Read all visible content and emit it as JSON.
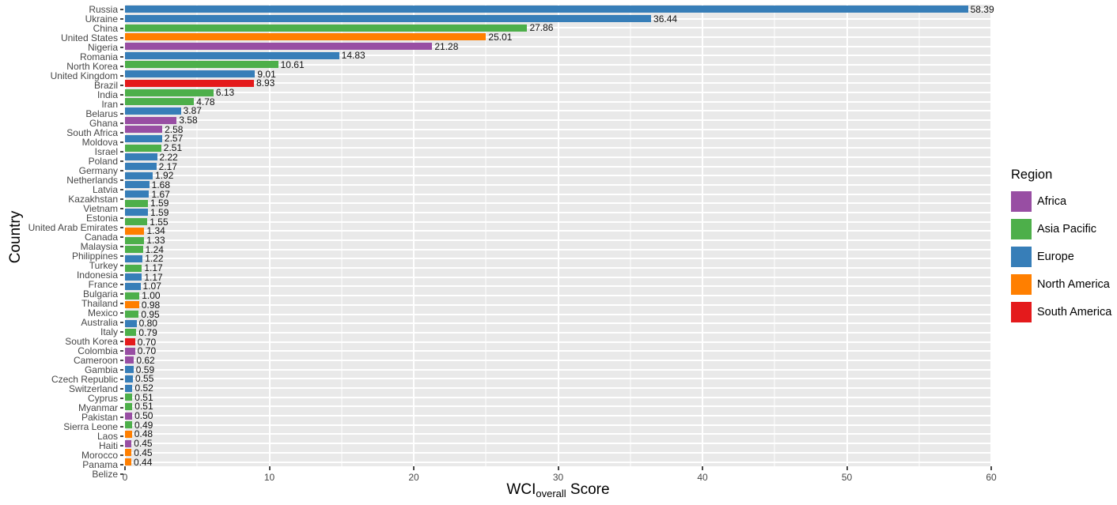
{
  "chart_data": {
    "type": "bar",
    "orientation": "horizontal",
    "xlabel": "WCI_overall Score",
    "xlabel_parts": {
      "main": "WCI",
      "sub": "overall",
      "rest": " Score"
    },
    "ylabel": "Country",
    "xlim": [
      0,
      60
    ],
    "x_ticks": [
      0,
      10,
      20,
      30,
      40,
      50,
      60
    ],
    "x_minor_gridlines": [
      5,
      15,
      25,
      35,
      45,
      55
    ],
    "grid": "on",
    "panel_background": "#E9E9E9",
    "gridline_color": "#FFFFFF",
    "legend": {
      "title": "Region",
      "position": "right",
      "entries": [
        {
          "label": "Africa",
          "color": "#984EA3"
        },
        {
          "label": "Asia Pacific",
          "color": "#4DAF4A"
        },
        {
          "label": "Europe",
          "color": "#377EB8"
        },
        {
          "label": "North America",
          "color": "#FF7F00"
        },
        {
          "label": "South America",
          "color": "#E41A1C"
        }
      ]
    },
    "region_colors": {
      "Africa": "#984EA3",
      "Asia Pacific": "#4DAF4A",
      "Europe": "#377EB8",
      "North America": "#FF7F00",
      "South America": "#E41A1C"
    },
    "countries": [
      {
        "name": "Russia",
        "value": 58.39,
        "label": "58.39",
        "region": "Europe"
      },
      {
        "name": "Ukraine",
        "value": 36.44,
        "label": "36.44",
        "region": "Europe"
      },
      {
        "name": "China",
        "value": 27.86,
        "label": "27.86",
        "region": "Asia Pacific"
      },
      {
        "name": "United States",
        "value": 25.01,
        "label": "25.01",
        "region": "North America"
      },
      {
        "name": "Nigeria",
        "value": 21.28,
        "label": "21.28",
        "region": "Africa"
      },
      {
        "name": "Romania",
        "value": 14.83,
        "label": "14.83",
        "region": "Europe"
      },
      {
        "name": "North Korea",
        "value": 10.61,
        "label": "10.61",
        "region": "Asia Pacific"
      },
      {
        "name": "United Kingdom",
        "value": 9.01,
        "label": "9.01",
        "region": "Europe"
      },
      {
        "name": "Brazil",
        "value": 8.93,
        "label": "8.93",
        "region": "South America"
      },
      {
        "name": "India",
        "value": 6.13,
        "label": "6.13",
        "region": "Asia Pacific"
      },
      {
        "name": "Iran",
        "value": 4.78,
        "label": "4.78",
        "region": "Asia Pacific"
      },
      {
        "name": "Belarus",
        "value": 3.87,
        "label": "3.87",
        "region": "Europe"
      },
      {
        "name": "Ghana",
        "value": 3.58,
        "label": "3.58",
        "region": "Africa"
      },
      {
        "name": "South Africa",
        "value": 2.58,
        "label": "2.58",
        "region": "Africa"
      },
      {
        "name": "Moldova",
        "value": 2.57,
        "label": "2.57",
        "region": "Europe"
      },
      {
        "name": "Israel",
        "value": 2.51,
        "label": "2.51",
        "region": "Asia Pacific"
      },
      {
        "name": "Poland",
        "value": 2.22,
        "label": "2.22",
        "region": "Europe"
      },
      {
        "name": "Germany",
        "value": 2.17,
        "label": "2.17",
        "region": "Europe"
      },
      {
        "name": "Netherlands",
        "value": 1.92,
        "label": "1.92",
        "region": "Europe"
      },
      {
        "name": "Latvia",
        "value": 1.68,
        "label": "1.68",
        "region": "Europe"
      },
      {
        "name": "Kazakhstan",
        "value": 1.67,
        "label": "1.67",
        "region": "Europe"
      },
      {
        "name": "Vietnam",
        "value": 1.59,
        "label": "1.59",
        "region": "Asia Pacific"
      },
      {
        "name": "Estonia",
        "value": 1.59,
        "label": "1.59",
        "region": "Europe"
      },
      {
        "name": "United Arab Emirates",
        "value": 1.55,
        "label": "1.55",
        "region": "Asia Pacific"
      },
      {
        "name": "Canada",
        "value": 1.34,
        "label": "1.34",
        "region": "North America"
      },
      {
        "name": "Malaysia",
        "value": 1.33,
        "label": "1.33",
        "region": "Asia Pacific"
      },
      {
        "name": "Philippines",
        "value": 1.24,
        "label": "1.24",
        "region": "Asia Pacific"
      },
      {
        "name": "Turkey",
        "value": 1.22,
        "label": "1.22",
        "region": "Europe"
      },
      {
        "name": "Indonesia",
        "value": 1.17,
        "label": "1.17",
        "region": "Asia Pacific"
      },
      {
        "name": "France",
        "value": 1.17,
        "label": "1.17",
        "region": "Europe"
      },
      {
        "name": "Bulgaria",
        "value": 1.07,
        "label": "1.07",
        "region": "Europe"
      },
      {
        "name": "Thailand",
        "value": 1.0,
        "label": "1.00",
        "region": "Asia Pacific"
      },
      {
        "name": "Mexico",
        "value": 0.98,
        "label": "0.98",
        "region": "North America"
      },
      {
        "name": "Australia",
        "value": 0.95,
        "label": "0.95",
        "region": "Asia Pacific"
      },
      {
        "name": "Italy",
        "value": 0.8,
        "label": "0.80",
        "region": "Europe"
      },
      {
        "name": "South Korea",
        "value": 0.79,
        "label": "0.79",
        "region": "Asia Pacific"
      },
      {
        "name": "Colombia",
        "value": 0.7,
        "label": "0.70",
        "region": "South America"
      },
      {
        "name": "Cameroon",
        "value": 0.7,
        "label": "0.70",
        "region": "Africa"
      },
      {
        "name": "Gambia",
        "value": 0.62,
        "label": "0.62",
        "region": "Africa"
      },
      {
        "name": "Czech Republic",
        "value": 0.59,
        "label": "0.59",
        "region": "Europe"
      },
      {
        "name": "Switzerland",
        "value": 0.55,
        "label": "0.55",
        "region": "Europe"
      },
      {
        "name": "Cyprus",
        "value": 0.52,
        "label": "0.52",
        "region": "Europe"
      },
      {
        "name": "Myanmar",
        "value": 0.51,
        "label": "0.51",
        "region": "Asia Pacific"
      },
      {
        "name": "Pakistan",
        "value": 0.51,
        "label": "0.51",
        "region": "Asia Pacific"
      },
      {
        "name": "Sierra Leone",
        "value": 0.5,
        "label": "0.50",
        "region": "Africa"
      },
      {
        "name": "Laos",
        "value": 0.49,
        "label": "0.49",
        "region": "Asia Pacific"
      },
      {
        "name": "Haiti",
        "value": 0.48,
        "label": "0.48",
        "region": "North America"
      },
      {
        "name": "Morocco",
        "value": 0.45,
        "label": "0.45",
        "region": "Africa"
      },
      {
        "name": "Panama",
        "value": 0.45,
        "label": "0.45",
        "region": "North America"
      },
      {
        "name": "Belize",
        "value": 0.44,
        "label": "0.44",
        "region": "North America"
      }
    ]
  }
}
